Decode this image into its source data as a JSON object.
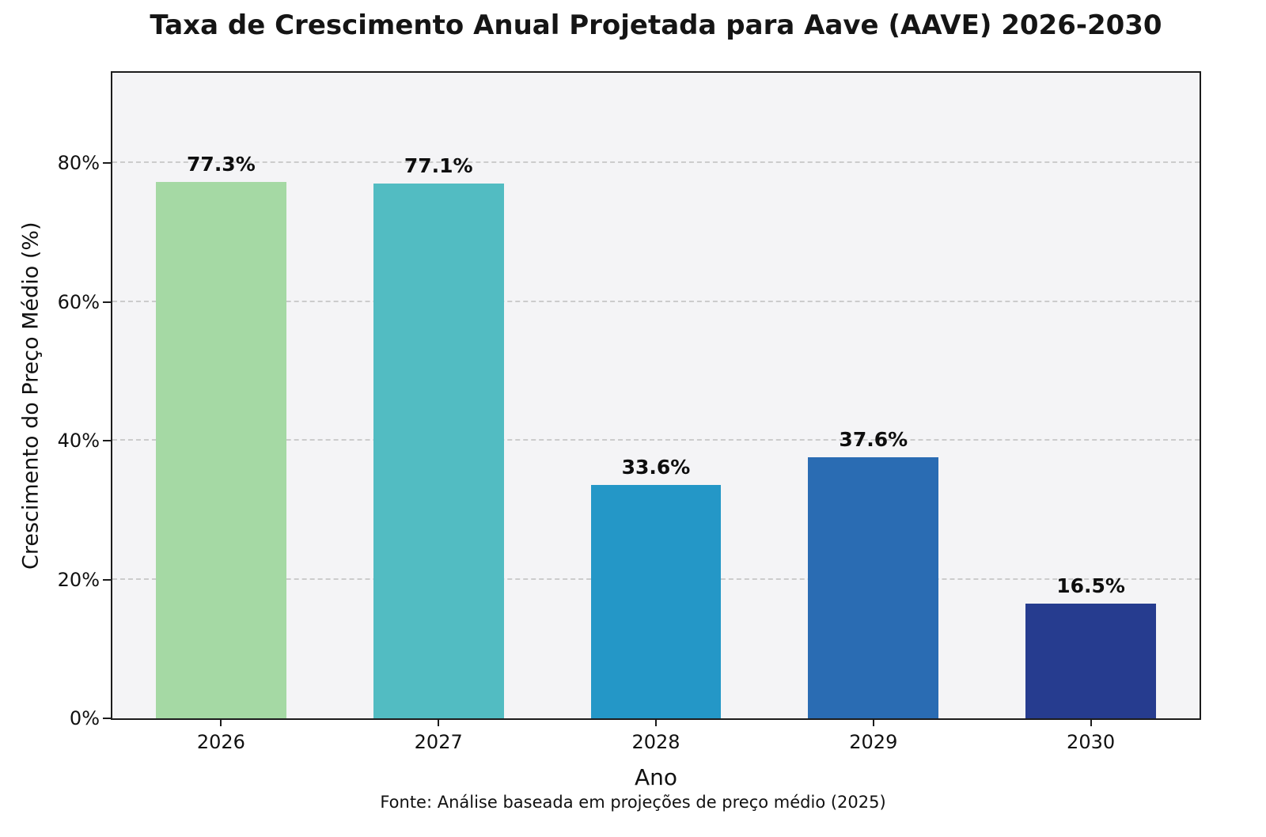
{
  "chart_data": {
    "type": "bar",
    "title": "Taxa de Crescimento Anual Projetada para Aave (AAVE) 2026-2030",
    "xlabel": "Ano",
    "ylabel": "Crescimento do Preço Médio (%)",
    "categories": [
      "2026",
      "2027",
      "2028",
      "2029",
      "2030"
    ],
    "values": [
      77.3,
      77.1,
      33.6,
      37.6,
      16.5
    ],
    "value_labels": [
      "77.3%",
      "77.1%",
      "33.6%",
      "37.6%",
      "16.5%"
    ],
    "bar_colors": [
      "#a5d9a4",
      "#52bcc2",
      "#2497c7",
      "#2a6cb3",
      "#263c8f"
    ],
    "ylim": [
      0,
      93
    ],
    "yticks": [
      0,
      20,
      40,
      60,
      80
    ],
    "ytick_labels": [
      "0%",
      "20%",
      "40%",
      "60%",
      "80%"
    ],
    "grid": "horizontal-dashed",
    "legend": "none",
    "source_note": "Fonte: Análise baseada em projeções de preço médio (2025)",
    "colors": {
      "figure_background": "#ffffff",
      "plot_background": "#f4f4f6",
      "frame": "#1c1c1c",
      "gridline": "#cccccc",
      "text": "#111111"
    }
  }
}
